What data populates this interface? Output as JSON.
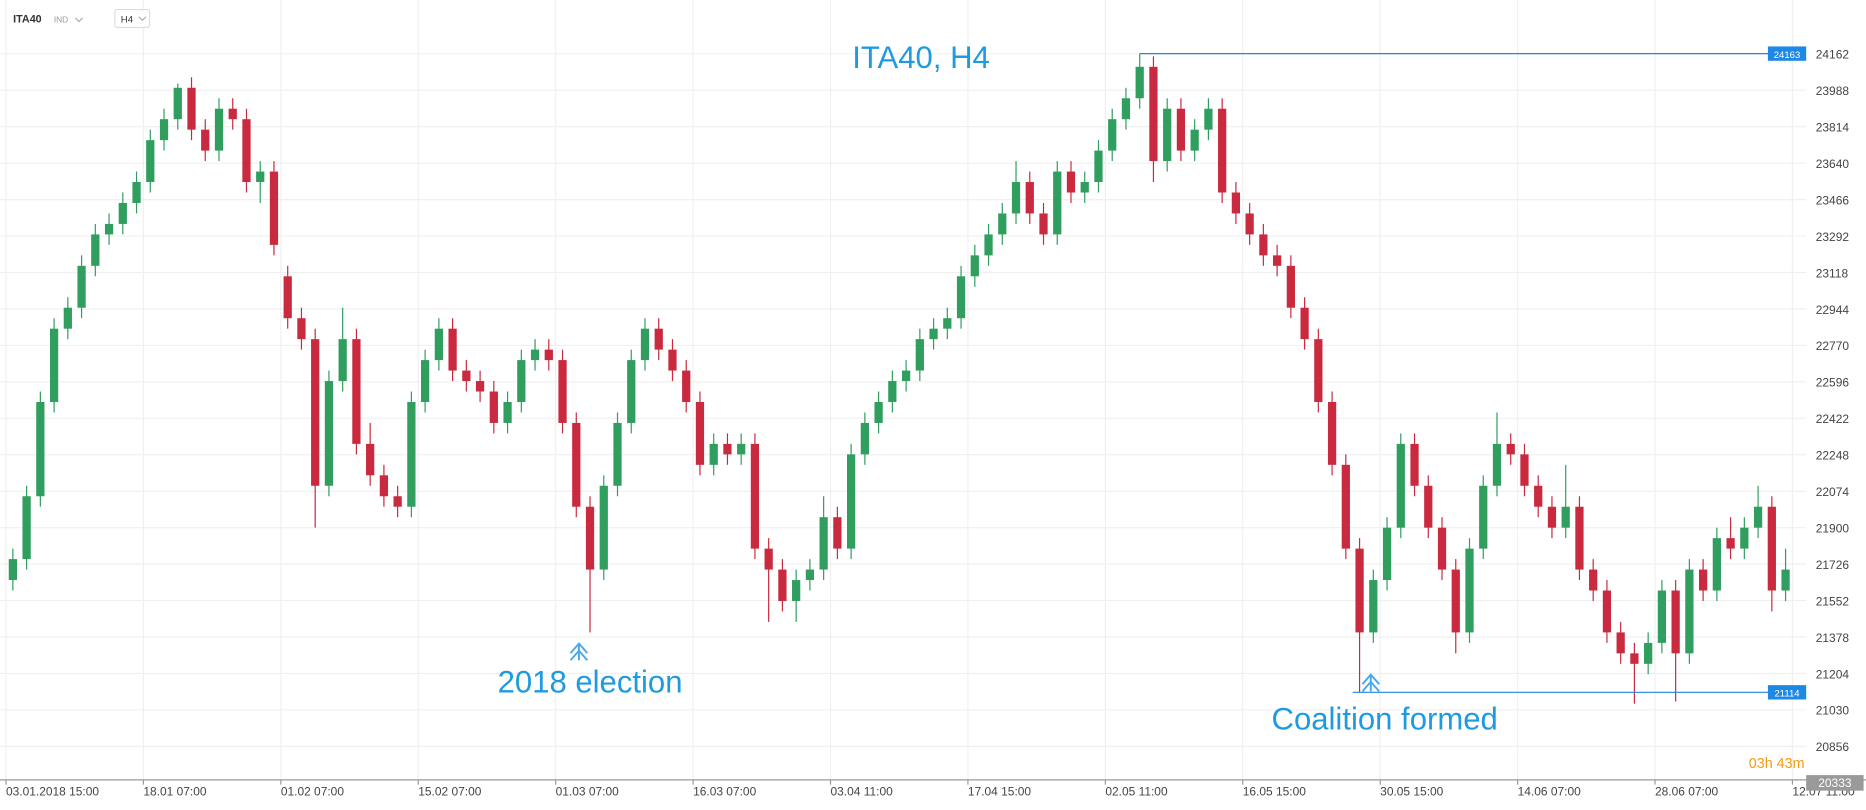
{
  "toolbar": {
    "symbol": "ITA40",
    "kind": "IND",
    "timeframe": "H4"
  },
  "chart_data": {
    "type": "candlestick",
    "title": "ITA40, H4",
    "xlim": [
      0,
      131
    ],
    "xticks": [
      {
        "value": 0,
        "label": "03.01.2018  15:00"
      },
      {
        "value": 10,
        "label": "18.01  07:00"
      },
      {
        "value": 20,
        "label": "01.02  07:00"
      },
      {
        "value": 30,
        "label": "15.02  07:00"
      },
      {
        "value": 40,
        "label": "01.03  07:00"
      },
      {
        "value": 50,
        "label": "16.03  07:00"
      },
      {
        "value": 60,
        "label": "03.04  11:00"
      },
      {
        "value": 70,
        "label": "17.04  15:00"
      },
      {
        "value": 80,
        "label": "02.05  11:00"
      },
      {
        "value": 90,
        "label": "16.05  15:00"
      },
      {
        "value": 100,
        "label": "30.05  15:00"
      },
      {
        "value": 110,
        "label": "14.06  07:00"
      },
      {
        "value": 120,
        "label": "28.06  07:00"
      },
      {
        "value": 130,
        "label": "12.07  11:00"
      }
    ],
    "ylim": [
      20696,
      24419
    ],
    "yticks": [
      24162,
      23988,
      23814,
      23640,
      23466,
      23292,
      23118,
      22944,
      22770,
      22596,
      22422,
      22248,
      22074,
      21900,
      21726,
      21552,
      21378,
      21204,
      21030,
      20856
    ],
    "grid": true,
    "up_color": "#2f9e5f",
    "down_color": "#c92a3f",
    "candles": [
      [
        21650,
        21800,
        21600,
        21750
      ],
      [
        21750,
        22100,
        21700,
        22050
      ],
      [
        22050,
        22550,
        22000,
        22500
      ],
      [
        22500,
        22900,
        22450,
        22850
      ],
      [
        22850,
        23000,
        22800,
        22950
      ],
      [
        22950,
        23200,
        22900,
        23150
      ],
      [
        23150,
        23350,
        23100,
        23300
      ],
      [
        23300,
        23400,
        23250,
        23350
      ],
      [
        23350,
        23500,
        23300,
        23450
      ],
      [
        23450,
        23600,
        23400,
        23550
      ],
      [
        23550,
        23800,
        23500,
        23750
      ],
      [
        23750,
        23900,
        23700,
        23850
      ],
      [
        23850,
        24020,
        23800,
        24000
      ],
      [
        24000,
        24050,
        23750,
        23800
      ],
      [
        23800,
        23850,
        23650,
        23700
      ],
      [
        23700,
        23950,
        23650,
        23900
      ],
      [
        23900,
        23950,
        23800,
        23850
      ],
      [
        23850,
        23900,
        23500,
        23550
      ],
      [
        23550,
        23650,
        23450,
        23600
      ],
      [
        23600,
        23650,
        23200,
        23250
      ],
      [
        23100,
        23150,
        22850,
        22900
      ],
      [
        22900,
        22950,
        22750,
        22800
      ],
      [
        22800,
        22850,
        21900,
        22100
      ],
      [
        22100,
        22650,
        22050,
        22600
      ],
      [
        22600,
        22950,
        22550,
        22800
      ],
      [
        22800,
        22850,
        22250,
        22300
      ],
      [
        22300,
        22400,
        22100,
        22150
      ],
      [
        22150,
        22200,
        22000,
        22050
      ],
      [
        22050,
        22100,
        21950,
        22000
      ],
      [
        22000,
        22550,
        21950,
        22500
      ],
      [
        22500,
        22750,
        22450,
        22700
      ],
      [
        22700,
        22900,
        22650,
        22850
      ],
      [
        22850,
        22900,
        22600,
        22650
      ],
      [
        22650,
        22700,
        22550,
        22600
      ],
      [
        22600,
        22650,
        22500,
        22550
      ],
      [
        22550,
        22600,
        22350,
        22400
      ],
      [
        22400,
        22550,
        22350,
        22500
      ],
      [
        22500,
        22750,
        22450,
        22700
      ],
      [
        22700,
        22800,
        22650,
        22750
      ],
      [
        22750,
        22800,
        22650,
        22700
      ],
      [
        22700,
        22750,
        22350,
        22400
      ],
      [
        22400,
        22450,
        21950,
        22000
      ],
      [
        22000,
        22050,
        21400,
        21700
      ],
      [
        21700,
        22150,
        21650,
        22100
      ],
      [
        22100,
        22450,
        22050,
        22400
      ],
      [
        22400,
        22750,
        22350,
        22700
      ],
      [
        22700,
        22900,
        22650,
        22850
      ],
      [
        22850,
        22900,
        22700,
        22750
      ],
      [
        22750,
        22800,
        22600,
        22650
      ],
      [
        22650,
        22700,
        22450,
        22500
      ],
      [
        22500,
        22550,
        22150,
        22200
      ],
      [
        22200,
        22350,
        22150,
        22300
      ],
      [
        22300,
        22350,
        22200,
        22250
      ],
      [
        22250,
        22350,
        22200,
        22300
      ],
      [
        22300,
        22350,
        21750,
        21800
      ],
      [
        21800,
        21850,
        21450,
        21700
      ],
      [
        21700,
        21750,
        21500,
        21550
      ],
      [
        21550,
        21700,
        21450,
        21650
      ],
      [
        21650,
        21750,
        21600,
        21700
      ],
      [
        21700,
        22050,
        21650,
        21950
      ],
      [
        21950,
        22000,
        21750,
        21800
      ],
      [
        21800,
        22300,
        21750,
        22250
      ],
      [
        22250,
        22450,
        22200,
        22400
      ],
      [
        22400,
        22550,
        22350,
        22500
      ],
      [
        22500,
        22650,
        22450,
        22600
      ],
      [
        22600,
        22700,
        22550,
        22650
      ],
      [
        22650,
        22850,
        22600,
        22800
      ],
      [
        22800,
        22900,
        22750,
        22850
      ],
      [
        22850,
        22950,
        22800,
        22900
      ],
      [
        22900,
        23150,
        22850,
        23100
      ],
      [
        23100,
        23250,
        23050,
        23200
      ],
      [
        23200,
        23350,
        23150,
        23300
      ],
      [
        23300,
        23450,
        23250,
        23400
      ],
      [
        23400,
        23650,
        23350,
        23550
      ],
      [
        23550,
        23600,
        23350,
        23400
      ],
      [
        23400,
        23450,
        23250,
        23300
      ],
      [
        23300,
        23650,
        23250,
        23600
      ],
      [
        23600,
        23650,
        23450,
        23500
      ],
      [
        23500,
        23600,
        23450,
        23550
      ],
      [
        23550,
        23750,
        23500,
        23700
      ],
      [
        23700,
        23900,
        23650,
        23850
      ],
      [
        23850,
        24000,
        23800,
        23950
      ],
      [
        23950,
        24163,
        23900,
        24100
      ],
      [
        24100,
        24150,
        23550,
        23650
      ],
      [
        23650,
        23950,
        23600,
        23900
      ],
      [
        23900,
        23950,
        23650,
        23700
      ],
      [
        23700,
        23850,
        23650,
        23800
      ],
      [
        23800,
        23950,
        23750,
        23900
      ],
      [
        23900,
        23950,
        23450,
        23500
      ],
      [
        23500,
        23550,
        23350,
        23400
      ],
      [
        23400,
        23450,
        23250,
        23300
      ],
      [
        23300,
        23350,
        23150,
        23200
      ],
      [
        23200,
        23250,
        23100,
        23150
      ],
      [
        23150,
        23200,
        22900,
        22950
      ],
      [
        22950,
        23000,
        22750,
        22800
      ],
      [
        22800,
        22850,
        22450,
        22500
      ],
      [
        22500,
        22550,
        22150,
        22200
      ],
      [
        22200,
        22250,
        21750,
        21800
      ],
      [
        21800,
        21850,
        21114,
        21400
      ],
      [
        21400,
        21700,
        21350,
        21650
      ],
      [
        21650,
        21950,
        21600,
        21900
      ],
      [
        21900,
        22350,
        21850,
        22300
      ],
      [
        22300,
        22350,
        22050,
        22100
      ],
      [
        22100,
        22150,
        21850,
        21900
      ],
      [
        21900,
        21950,
        21650,
        21700
      ],
      [
        21700,
        21750,
        21300,
        21400
      ],
      [
        21400,
        21850,
        21350,
        21800
      ],
      [
        21800,
        22150,
        21750,
        22100
      ],
      [
        22100,
        22450,
        22050,
        22300
      ],
      [
        22300,
        22350,
        22200,
        22250
      ],
      [
        22250,
        22300,
        22050,
        22100
      ],
      [
        22100,
        22150,
        21950,
        22000
      ],
      [
        22000,
        22050,
        21850,
        21900
      ],
      [
        21900,
        22200,
        21850,
        22000
      ],
      [
        22000,
        22050,
        21650,
        21700
      ],
      [
        21700,
        21750,
        21550,
        21600
      ],
      [
        21600,
        21650,
        21350,
        21400
      ],
      [
        21400,
        21450,
        21250,
        21300
      ],
      [
        21300,
        21350,
        21060,
        21250
      ],
      [
        21250,
        21400,
        21200,
        21350
      ],
      [
        21350,
        21650,
        21300,
        21600
      ],
      [
        21600,
        21650,
        21070,
        21300
      ],
      [
        21300,
        21750,
        21250,
        21700
      ],
      [
        21700,
        21750,
        21550,
        21600
      ],
      [
        21600,
        21900,
        21550,
        21850
      ],
      [
        21850,
        21950,
        21750,
        21800
      ],
      [
        21800,
        21950,
        21750,
        21900
      ],
      [
        21900,
        22100,
        21850,
        22000
      ],
      [
        22000,
        22050,
        21500,
        21600
      ],
      [
        21600,
        21800,
        21550,
        21700
      ]
    ],
    "hlines": [
      24163,
      21114
    ],
    "hline_color": "#1e88e5",
    "annotations": [
      "2018 election",
      "Coalition formed"
    ],
    "countdown": "03h 43m",
    "corner_badge": "20333"
  }
}
